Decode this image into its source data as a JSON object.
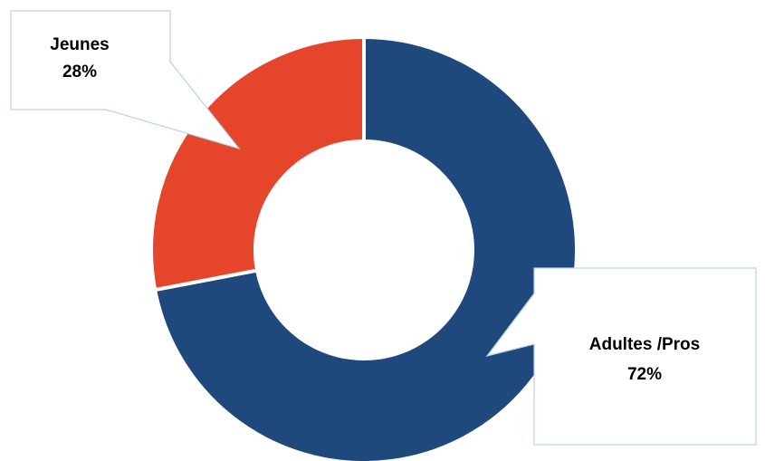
{
  "chart_data": {
    "type": "pie",
    "variant": "donut",
    "slices": [
      {
        "label": "Adultes /Pros",
        "value": 72,
        "value_label": "72%",
        "color": "#1f497d"
      },
      {
        "label": "Jeunes",
        "value": 28,
        "value_label": "28%",
        "color": "#e5462b"
      }
    ]
  }
}
